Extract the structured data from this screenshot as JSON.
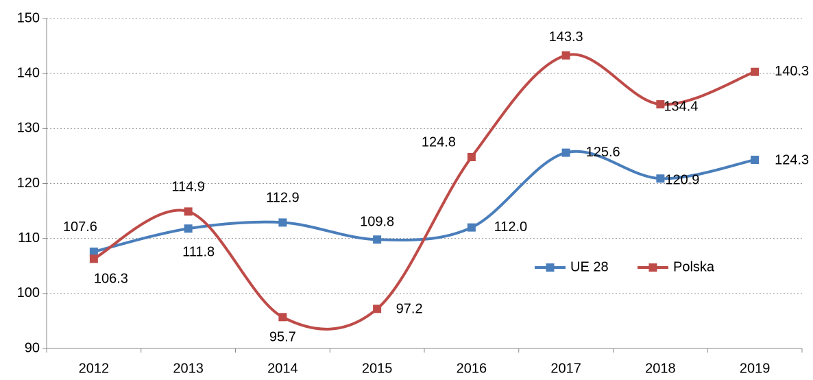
{
  "chart_data": {
    "type": "line",
    "categories": [
      "2012",
      "2013",
      "2014",
      "2015",
      "2016",
      "2017",
      "2018",
      "2019"
    ],
    "series": [
      {
        "name": "UE 28",
        "color": "#4a7ebb",
        "values": [
          107.6,
          111.8,
          112.9,
          109.8,
          112,
          125.6,
          120.9,
          124.3
        ],
        "value_labels": [
          "107.6",
          "111.8",
          "112.9",
          "109.8",
          "112.0",
          "125.6",
          "120.9",
          "124.3"
        ]
      },
      {
        "name": "Polska",
        "color": "#be4b48",
        "values": [
          106.3,
          114.9,
          95.7,
          97.2,
          124.8,
          143.3,
          134.4,
          140.3
        ],
        "value_labels": [
          "106.3",
          "114.9",
          "95.7",
          "97.2",
          "124.8",
          "143.3",
          "134.4",
          "140.3"
        ]
      }
    ],
    "ylim": [
      90,
      150
    ],
    "yticks": [
      90,
      100,
      110,
      120,
      130,
      140,
      150
    ],
    "grid": true
  }
}
